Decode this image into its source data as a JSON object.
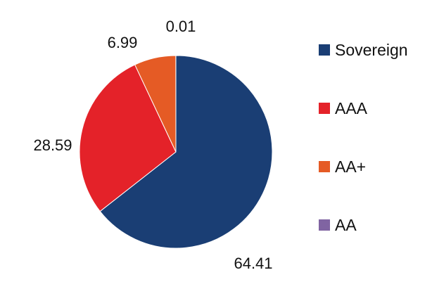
{
  "chart_data": {
    "type": "pie",
    "categories": [
      "Sovereign",
      "AAA",
      "AA+",
      "AA"
    ],
    "values": [
      64.41,
      28.59,
      6.99,
      0.01
    ],
    "labels": [
      "64.41",
      "28.59",
      "6.99",
      "0.01"
    ],
    "colors": [
      "#1a3e74",
      "#e42229",
      "#e55b25",
      "#8064a2"
    ],
    "title": "",
    "legend_position": "right"
  }
}
